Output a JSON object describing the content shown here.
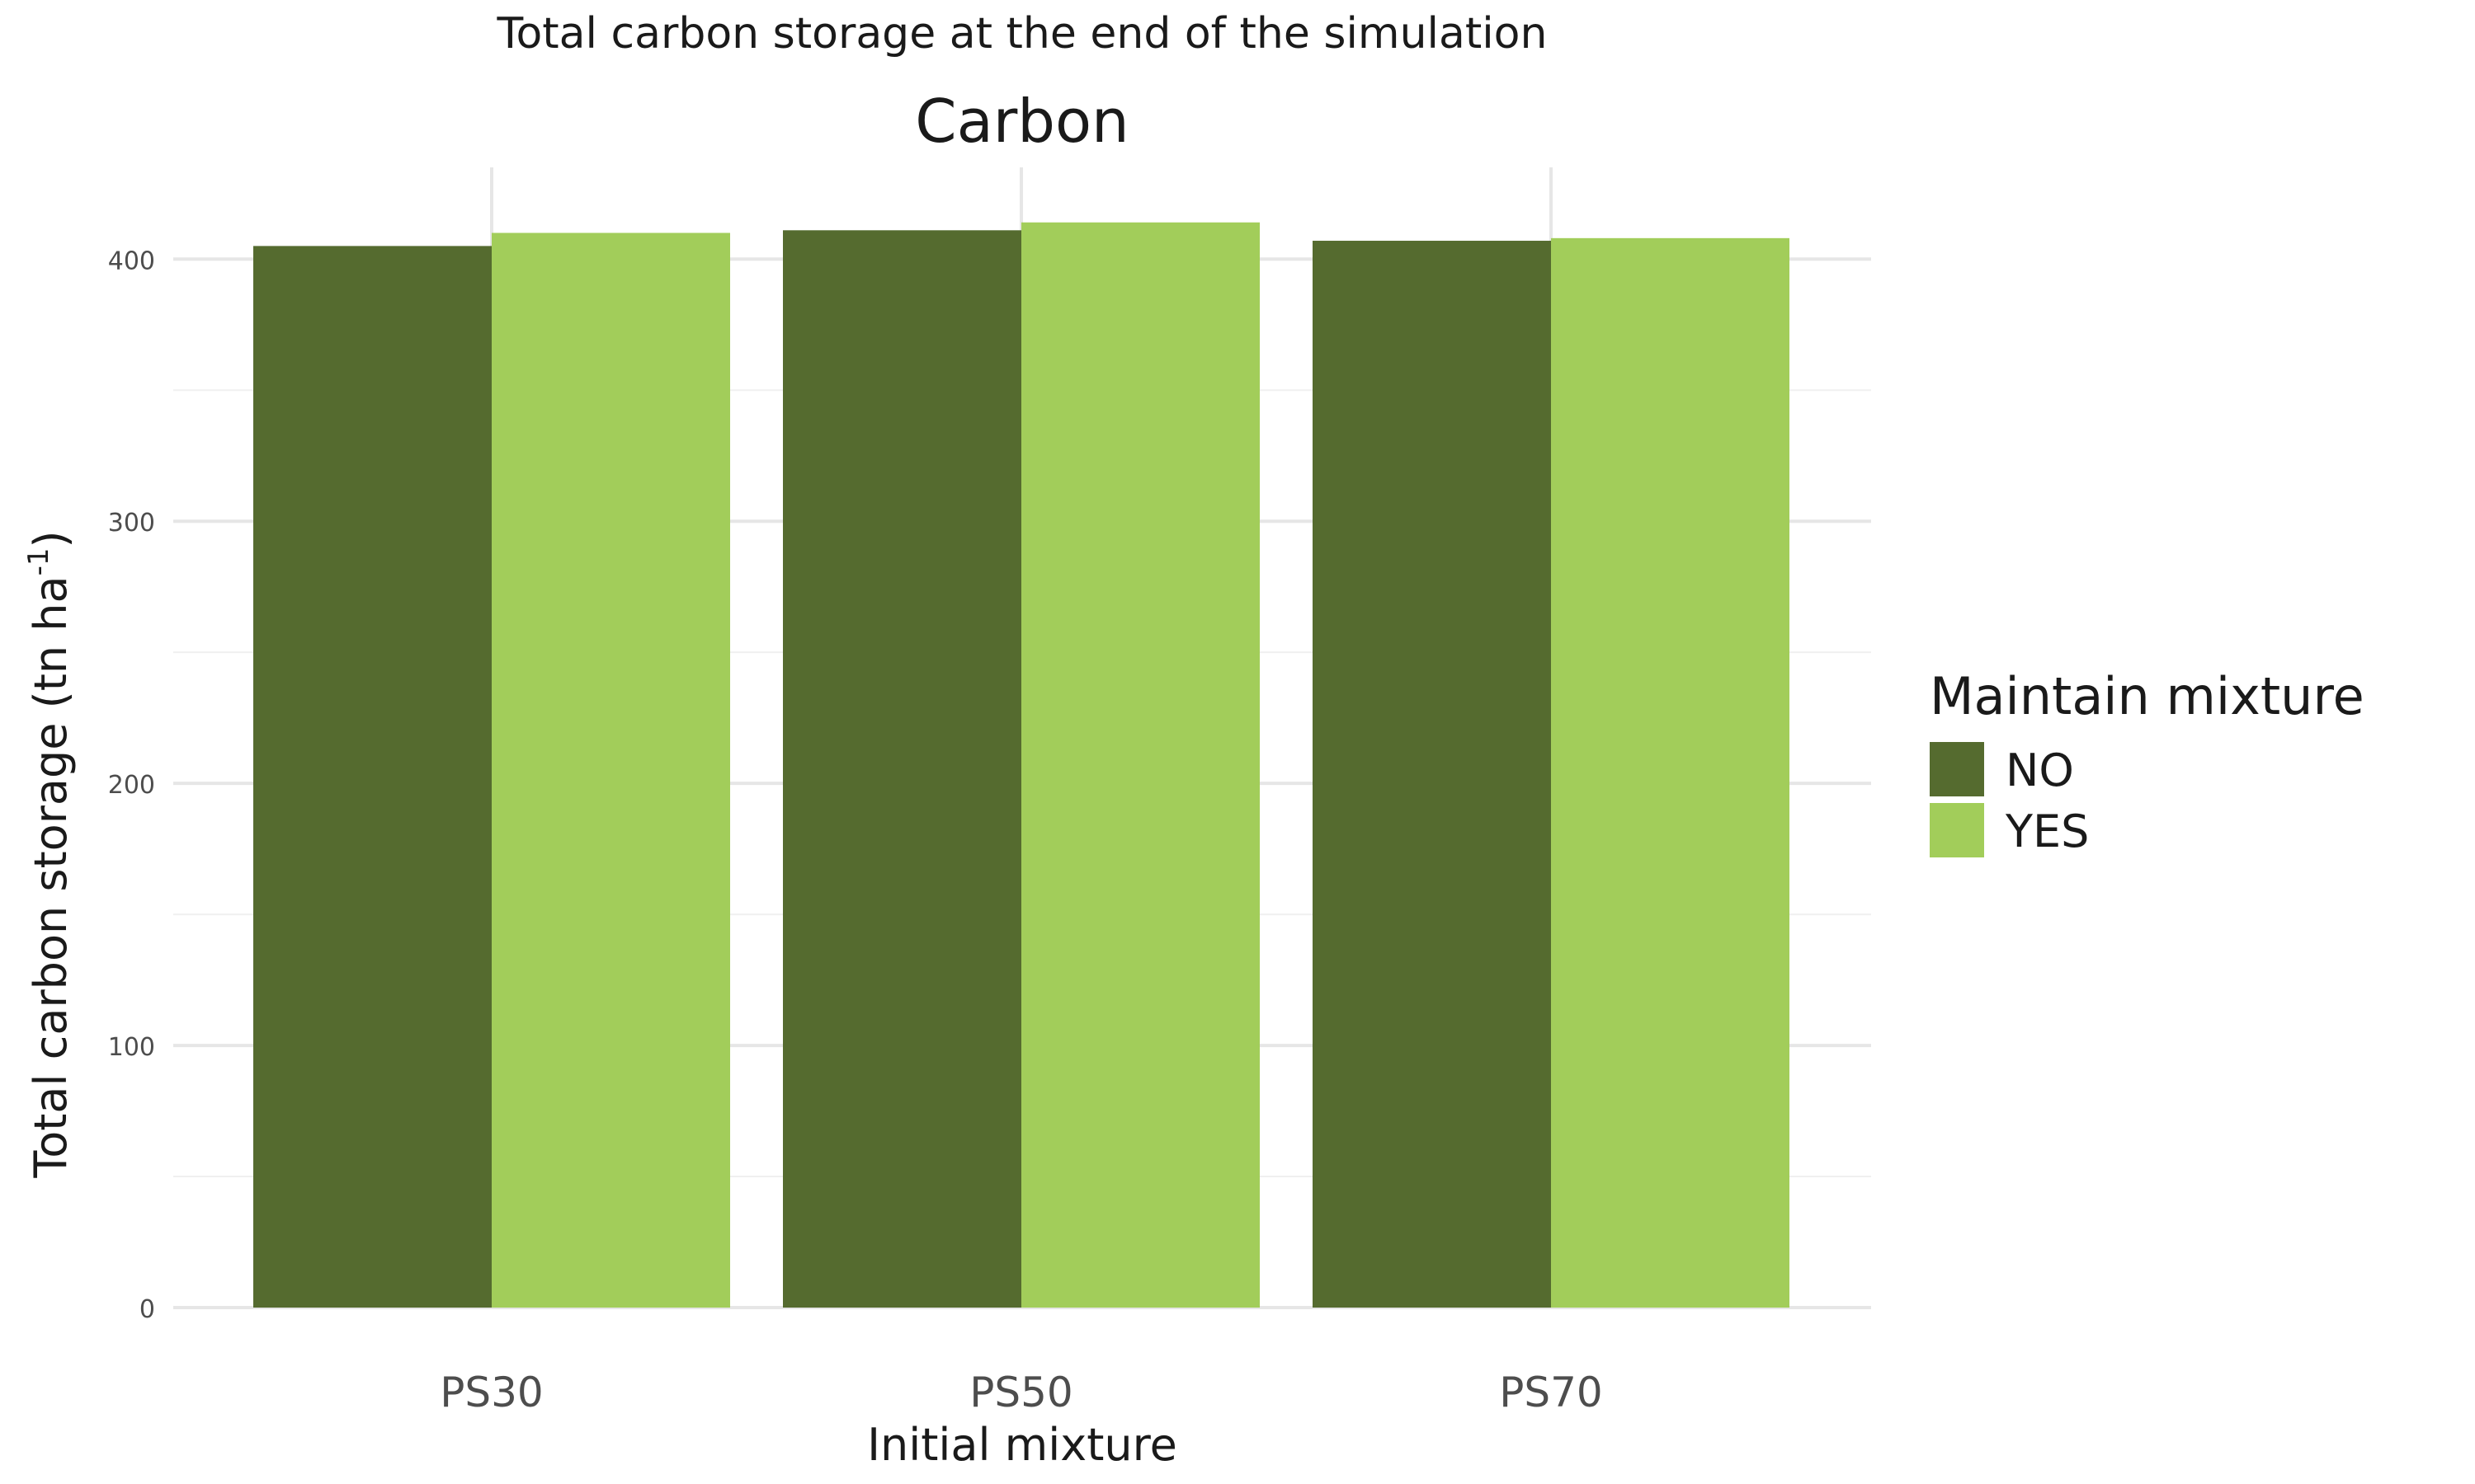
{
  "header": {
    "title": "Total carbon storage at the end of the simulation"
  },
  "chart_data": {
    "type": "bar",
    "title": "Carbon",
    "xlabel": "Initial mixture",
    "ylabel_main": "Total carbon storage (tn ha",
    "ylabel_sup": "-1",
    "ylabel_close": ")",
    "categories": [
      "PS30",
      "PS50",
      "PS70"
    ],
    "series": [
      {
        "name": "NO",
        "values": [
          405,
          411,
          407
        ],
        "color": "#556B2F"
      },
      {
        "name": "YES",
        "values": [
          410,
          414,
          408
        ],
        "color": "#A2CD5A"
      }
    ],
    "ylim": [
      0,
      435
    ],
    "yticks": [
      0,
      100,
      200,
      300,
      400
    ],
    "yticks_minor": [
      50,
      150,
      250,
      350
    ],
    "grid": true,
    "legend": {
      "title": "Maintain mixture",
      "position": "right"
    }
  }
}
